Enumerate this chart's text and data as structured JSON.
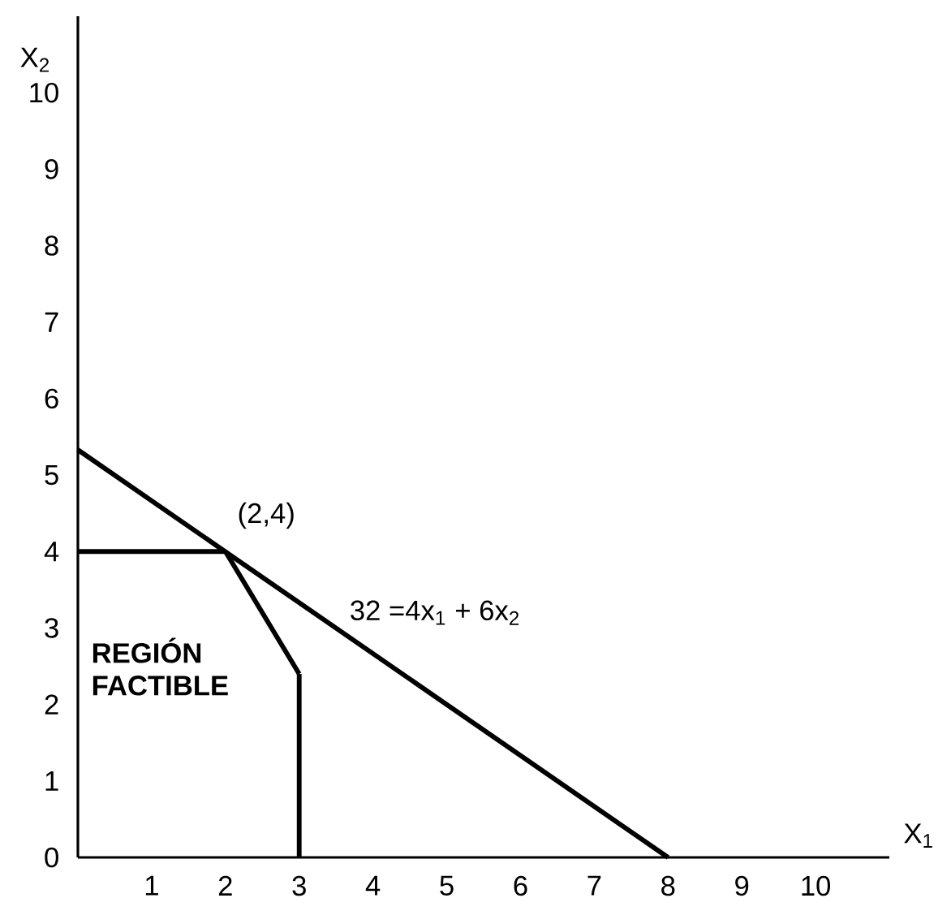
{
  "chart_data": {
    "type": "line",
    "xlabel": "X$_{1}$",
    "ylabel": "X$_{2}$",
    "xlim": [
      0,
      11
    ],
    "ylim": [
      0,
      11
    ],
    "xticks": [
      1,
      2,
      3,
      4,
      5,
      6,
      7,
      8,
      9,
      10
    ],
    "yticks": [
      0,
      1,
      2,
      3,
      4,
      5,
      6,
      7,
      8,
      9,
      10
    ],
    "marker": "none",
    "line_style": "solid",
    "series": [
      {
        "color": "#000000",
        "x": [
          0,
          8
        ],
        "values": [
          5.33,
          0
        ]
      },
      {
        "color": "#000000",
        "x": [
          0,
          2
        ],
        "values": [
          4,
          4
        ]
      },
      {
        "color": "#000000",
        "x": [
          2,
          3
        ],
        "values": [
          4,
          2.4
        ]
      },
      {
        "color": "#000000",
        "x": [
          3,
          3
        ],
        "values": [
          2.4,
          0
        ]
      }
    ],
    "annotations": [
      {
        "text": "(2,4)",
        "x": 2,
        "y": 4
      },
      "32 =4x$_{1}$ + 6x$_{2}$",
      "REGIÓN FACTIBLE"
    ]
  }
}
